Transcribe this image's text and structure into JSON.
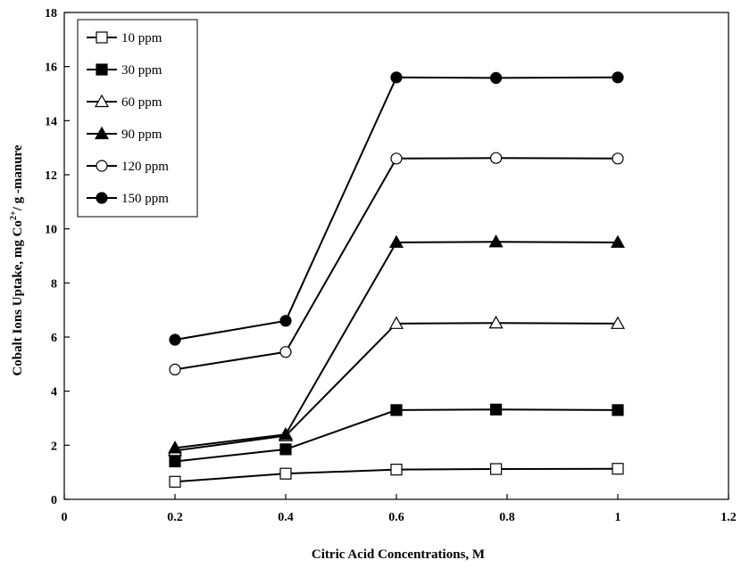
{
  "chart_data": {
    "type": "line",
    "xlabel": "Citric Acid Concentrations, M",
    "ylabel_main": "Cobalt Ions Uptake, mg Co",
    "ylabel_sup": "2+",
    "ylabel_tail": "/ g -manure",
    "xlim": [
      0,
      1.2
    ],
    "ylim": [
      0,
      18
    ],
    "xticks": [
      0,
      0.2,
      0.4,
      0.6,
      0.8,
      1,
      1.2
    ],
    "xtick_labels": [
      "0",
      "0.2",
      "0.4",
      "0.6",
      "0.8",
      "1",
      "1.2"
    ],
    "yticks": [
      0,
      2,
      4,
      6,
      8,
      10,
      12,
      14,
      16,
      18
    ],
    "ytick_labels": [
      "0",
      "2",
      "4",
      "6",
      "8",
      "10",
      "12",
      "14",
      "16",
      "18"
    ],
    "grid": false,
    "legend_position": "top-left",
    "x": [
      0.2,
      0.4,
      0.6,
      0.78,
      1.0
    ],
    "series": [
      {
        "name": "10 ppm",
        "marker": "square",
        "filled": false,
        "values": [
          0.65,
          0.95,
          1.1,
          1.12,
          1.13
        ]
      },
      {
        "name": "30 ppm",
        "marker": "square",
        "filled": true,
        "values": [
          1.4,
          1.85,
          3.3,
          3.32,
          3.3
        ]
      },
      {
        "name": "60 ppm",
        "marker": "triangle",
        "filled": false,
        "values": [
          1.8,
          2.35,
          6.5,
          6.52,
          6.5
        ]
      },
      {
        "name": "90 ppm",
        "marker": "triangle",
        "filled": true,
        "values": [
          1.9,
          2.4,
          9.5,
          9.52,
          9.5
        ]
      },
      {
        "name": "120 ppm",
        "marker": "circle",
        "filled": false,
        "values": [
          4.8,
          5.45,
          12.6,
          12.62,
          12.6
        ]
      },
      {
        "name": "150 ppm",
        "marker": "circle",
        "filled": true,
        "values": [
          5.9,
          6.6,
          15.6,
          15.58,
          15.6
        ]
      }
    ]
  }
}
